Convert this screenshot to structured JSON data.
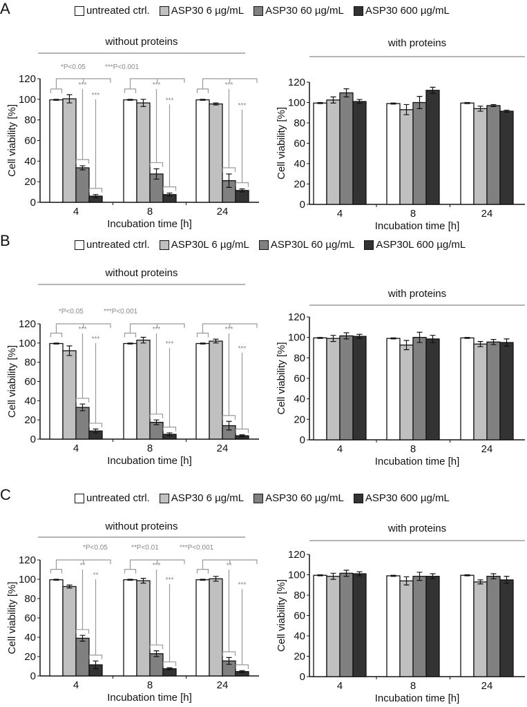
{
  "colors": [
    "#ffffff",
    "#c0c0c0",
    "#808080",
    "#333333"
  ],
  "panels": [
    {
      "letter": "A",
      "legend": [
        "untreated ctrl.",
        "ASP30 6 µg/mL",
        "ASP30 60 µg/mL",
        "ASP30 600 µg/mL"
      ],
      "pnotes": [
        "*P<0.05",
        "***P<0.001"
      ]
    },
    {
      "letter": "B",
      "legend": [
        "untreated ctrl.",
        "ASP30L 6 µg/mL",
        "ASP30L 60 µg/mL",
        "ASP30L 600 µg/mL"
      ],
      "pnotes": [
        "*P<0.05",
        "***P<0.001"
      ]
    },
    {
      "letter": "C",
      "legend": [
        "untreated ctrl.",
        "ASP30 6 µg/mL",
        "ASP30 60 µg/mL",
        "ASP30 600 µg/mL"
      ],
      "pnotes": [
        "*P<0.05",
        "**P<0.01",
        "***P<0.001"
      ]
    }
  ],
  "chart_data": [
    {
      "type": "bar",
      "panel": "A",
      "title": "without proteins",
      "xlabel": "Incubation time [h]",
      "ylabel": "Cell viability [%]",
      "ylim": [
        0,
        120
      ],
      "yticks": [
        "0",
        "20",
        "40",
        "60",
        "80",
        "100",
        "120"
      ],
      "categories": [
        "4",
        "8",
        "24"
      ],
      "series": [
        {
          "name": "untreated ctrl.",
          "values": [
            99.5,
            99.5,
            99.5
          ],
          "errors": [
            0.5,
            0.5,
            0.5
          ]
        },
        {
          "name": "ASP30 6 µg/mL",
          "values": [
            100.5,
            96.5,
            95.5
          ],
          "errors": [
            4,
            3.5,
            1
          ]
        },
        {
          "name": "ASP30 60 µg/mL",
          "values": [
            33.5,
            27.5,
            21
          ],
          "errors": [
            2,
            5,
            6.5
          ]
        },
        {
          "name": "ASP30 600 µg/mL",
          "values": [
            6,
            7.5,
            11.5
          ],
          "errors": [
            1.5,
            1.5,
            1.5
          ]
        }
      ],
      "significance": [
        [
          "***",
          "***"
        ],
        [
          "***",
          "***"
        ],
        [
          "***",
          "***"
        ]
      ]
    },
    {
      "type": "bar",
      "panel": "A",
      "title": "with proteins",
      "xlabel": "Incubation time [h]",
      "ylabel": "Cell viability [%]",
      "ylim": [
        0,
        120
      ],
      "yticks": [
        "0",
        "20",
        "40",
        "60",
        "80",
        "100",
        "120"
      ],
      "categories": [
        "4",
        "8",
        "24"
      ],
      "series": [
        {
          "name": "untreated ctrl.",
          "values": [
            99.5,
            99,
            99.5
          ],
          "errors": [
            0.5,
            0.5,
            0.5
          ]
        },
        {
          "name": "ASP30 6 µg/mL",
          "values": [
            102.5,
            93,
            94
          ],
          "errors": [
            3,
            5,
            2.5
          ]
        },
        {
          "name": "ASP30 60 µg/mL",
          "values": [
            109.5,
            100,
            97
          ],
          "errors": [
            4,
            6,
            1
          ]
        },
        {
          "name": "ASP30 600 µg/mL",
          "values": [
            101,
            112,
            91.5
          ],
          "errors": [
            2,
            3,
            1
          ]
        }
      ]
    },
    {
      "type": "bar",
      "panel": "B",
      "title": "without proteins",
      "xlabel": "Incubation time [h]",
      "ylabel": "Cell viability [%]",
      "ylim": [
        0,
        120
      ],
      "yticks": [
        "0",
        "20",
        "40",
        "60",
        "80",
        "100",
        "120"
      ],
      "categories": [
        "4",
        "8",
        "24"
      ],
      "series": [
        {
          "name": "untreated ctrl.",
          "values": [
            99.5,
            99.5,
            99.5
          ],
          "errors": [
            0.5,
            0.5,
            0.5
          ]
        },
        {
          "name": "ASP30L 6 µg/mL",
          "values": [
            92,
            103,
            102
          ],
          "errors": [
            5,
            3,
            2
          ]
        },
        {
          "name": "ASP30L 60 µg/mL",
          "values": [
            33,
            17.5,
            14
          ],
          "errors": [
            3.5,
            2.5,
            4.5
          ]
        },
        {
          "name": "ASP30L 600 µg/mL",
          "values": [
            8.5,
            5,
            3.5
          ],
          "errors": [
            2,
            1.5,
            1
          ]
        }
      ],
      "significance": [
        [
          "***",
          "***"
        ],
        [
          "***",
          "***"
        ],
        [
          "***",
          "***"
        ]
      ]
    },
    {
      "type": "bar",
      "panel": "B",
      "title": "with proteins",
      "xlabel": "Incubation time [h]",
      "ylabel": "Cell viability [%]",
      "ylim": [
        0,
        120
      ],
      "yticks": [
        "0",
        "20",
        "40",
        "60",
        "80",
        "100",
        "120"
      ],
      "categories": [
        "4",
        "8",
        "24"
      ],
      "series": [
        {
          "name": "untreated ctrl.",
          "values": [
            99.5,
            99,
            99.5
          ],
          "errors": [
            0.5,
            0.5,
            0.5
          ]
        },
        {
          "name": "ASP30L 6 µg/mL",
          "values": [
            99,
            92.5,
            93.5
          ],
          "errors": [
            3,
            4.5,
            2.5
          ]
        },
        {
          "name": "ASP30L 60 µg/mL",
          "values": [
            101.5,
            100,
            95.5
          ],
          "errors": [
            3,
            5,
            2.5
          ]
        },
        {
          "name": "ASP30L 600 µg/mL",
          "values": [
            101,
            98.5,
            95
          ],
          "errors": [
            2,
            3.5,
            3.5
          ]
        }
      ]
    },
    {
      "type": "bar",
      "panel": "C",
      "title": "without proteins",
      "xlabel": "Incubation time [h]",
      "ylabel": "Cell viability [%]",
      "ylim": [
        0,
        120
      ],
      "yticks": [
        "0",
        "20",
        "40",
        "60",
        "80",
        "100",
        "120"
      ],
      "categories": [
        "4",
        "8",
        "24"
      ],
      "series": [
        {
          "name": "untreated ctrl.",
          "values": [
            99.5,
            99.5,
            99.5
          ],
          "errors": [
            0.5,
            0.5,
            0.5
          ]
        },
        {
          "name": "ASP30 6 µg/mL",
          "values": [
            92.5,
            98.5,
            100.5
          ],
          "errors": [
            1.5,
            2.5,
            2.5
          ]
        },
        {
          "name": "ASP30 60 µg/mL",
          "values": [
            39,
            23,
            15.5
          ],
          "errors": [
            3,
            3,
            3.5
          ]
        },
        {
          "name": "ASP30 600 µg/mL",
          "values": [
            11.5,
            7.5,
            4.5
          ],
          "errors": [
            4,
            1,
            1
          ]
        }
      ],
      "significance": [
        [
          "**",
          "**"
        ],
        [
          "***",
          "***"
        ],
        [
          "**",
          "***"
        ]
      ]
    },
    {
      "type": "bar",
      "panel": "C",
      "title": "with proteins",
      "xlabel": "Incubation time [h]",
      "ylabel": "Cell viability [%]",
      "ylim": [
        0,
        120
      ],
      "yticks": [
        "0",
        "20",
        "40",
        "60",
        "80",
        "100",
        "120"
      ],
      "categories": [
        "4",
        "8",
        "24"
      ],
      "series": [
        {
          "name": "untreated ctrl.",
          "values": [
            99.5,
            99,
            99.5
          ],
          "errors": [
            0.5,
            0.5,
            0.5
          ]
        },
        {
          "name": "ASP30 6 µg/mL",
          "values": [
            98.5,
            94,
            93
          ],
          "errors": [
            3,
            4,
            2
          ]
        },
        {
          "name": "ASP30 60 µg/mL",
          "values": [
            101.5,
            98.5,
            98.5
          ],
          "errors": [
            3,
            4,
            2.5
          ]
        },
        {
          "name": "ASP30 600 µg/mL",
          "values": [
            101,
            98.5,
            95
          ],
          "errors": [
            2,
            2.5,
            3.5
          ]
        }
      ]
    }
  ]
}
